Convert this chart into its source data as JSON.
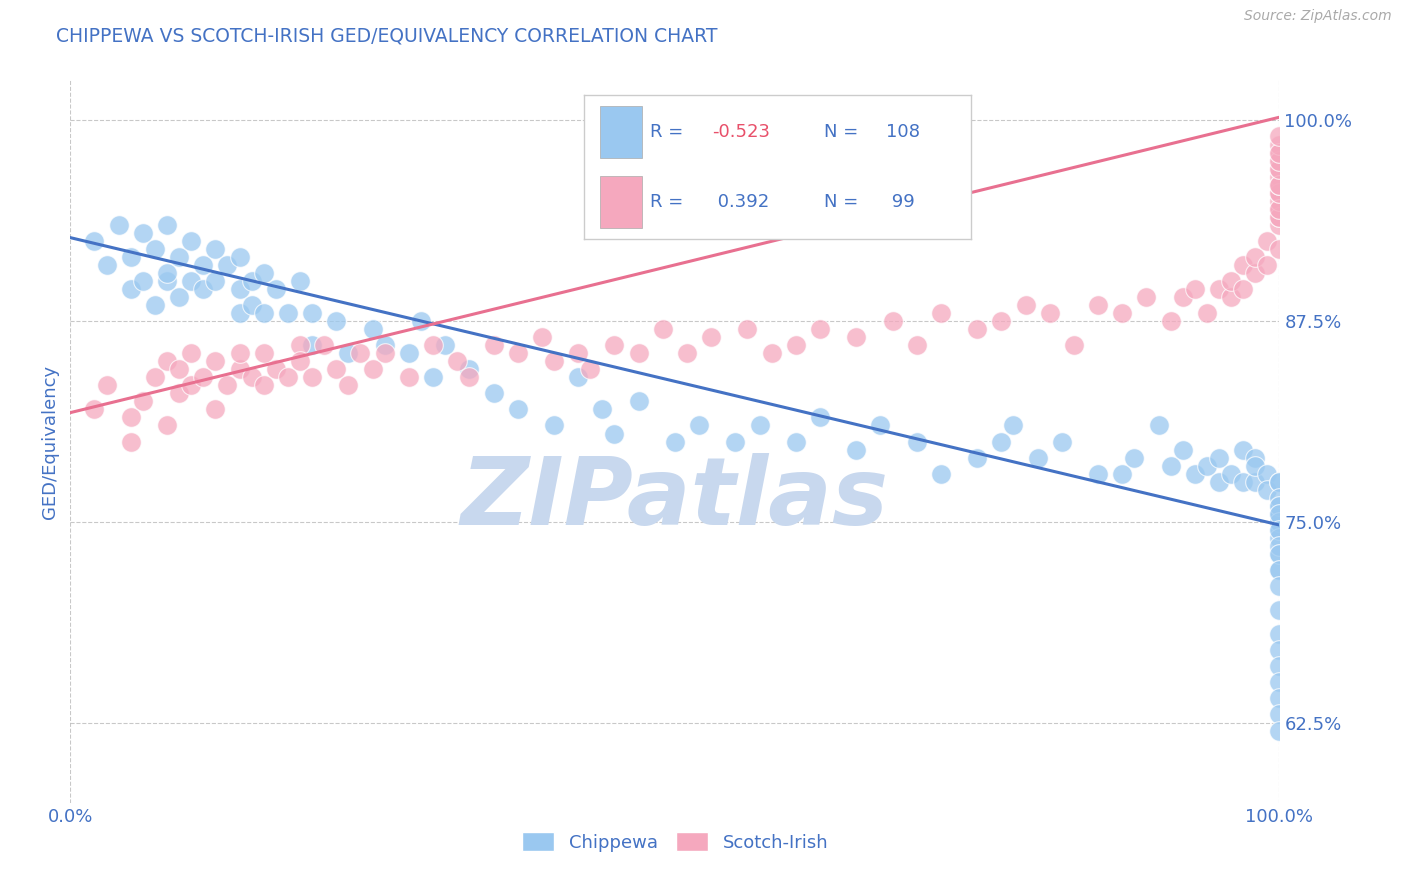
{
  "title": "CHIPPEWA VS SCOTCH-IRISH GED/EQUIVALENCY CORRELATION CHART",
  "source_text": "Source: ZipAtlas.com",
  "ylabel": "GED/Equivalency",
  "xlim": [
    0.0,
    1.0
  ],
  "ylim": [
    0.575,
    1.025
  ],
  "yticks": [
    0.625,
    0.75,
    0.875,
    1.0
  ],
  "ytick_labels": [
    "62.5%",
    "75.0%",
    "87.5%",
    "100.0%"
  ],
  "xticks": [
    0.0,
    1.0
  ],
  "xtick_labels": [
    "0.0%",
    "100.0%"
  ],
  "chippewa_color": "#9AC8F0",
  "scotch_irish_color": "#F5A8BE",
  "chippewa_line_color": "#4472C4",
  "scotch_irish_line_color": "#E87090",
  "grid_color": "#BBBBBB",
  "title_color": "#4472C4",
  "tick_label_color": "#4472C4",
  "legend_r1": "-0.523",
  "legend_n1": "108",
  "legend_r2": "0.392",
  "legend_n2": "99",
  "watermark_text": "ZIPatlas",
  "watermark_color": "#C8D8EE",
  "background_color": "#FFFFFF",
  "chip_line_x0": 0.0,
  "chip_line_y0": 0.927,
  "chip_line_x1": 1.0,
  "chip_line_y1": 0.748,
  "si_line_x0": 0.0,
  "si_line_y0": 0.818,
  "si_line_x1": 1.0,
  "si_line_y1": 1.002,
  "chippewa_x": [
    0.02,
    0.03,
    0.04,
    0.05,
    0.05,
    0.06,
    0.06,
    0.07,
    0.07,
    0.08,
    0.08,
    0.08,
    0.09,
    0.09,
    0.1,
    0.1,
    0.11,
    0.11,
    0.12,
    0.12,
    0.13,
    0.14,
    0.14,
    0.14,
    0.15,
    0.15,
    0.16,
    0.16,
    0.17,
    0.18,
    0.19,
    0.2,
    0.2,
    0.22,
    0.23,
    0.25,
    0.26,
    0.28,
    0.29,
    0.3,
    0.31,
    0.33,
    0.35,
    0.37,
    0.4,
    0.42,
    0.44,
    0.45,
    0.47,
    0.5,
    0.52,
    0.55,
    0.57,
    0.6,
    0.62,
    0.65,
    0.67,
    0.7,
    0.72,
    0.75,
    0.77,
    0.78,
    0.8,
    0.82,
    0.85,
    0.87,
    0.88,
    0.9,
    0.91,
    0.92,
    0.93,
    0.94,
    0.95,
    0.95,
    0.96,
    0.97,
    0.97,
    0.98,
    0.98,
    0.98,
    0.99,
    0.99,
    1.0,
    1.0,
    1.0,
    1.0,
    1.0,
    1.0,
    1.0,
    1.0,
    1.0,
    1.0,
    1.0,
    1.0,
    1.0,
    1.0,
    1.0,
    1.0,
    1.0,
    1.0,
    1.0,
    1.0,
    1.0,
    1.0,
    1.0,
    1.0,
    1.0,
    1.0
  ],
  "chippewa_y": [
    0.925,
    0.91,
    0.935,
    0.895,
    0.915,
    0.9,
    0.93,
    0.885,
    0.92,
    0.9,
    0.935,
    0.905,
    0.915,
    0.89,
    0.9,
    0.925,
    0.895,
    0.91,
    0.9,
    0.92,
    0.91,
    0.895,
    0.915,
    0.88,
    0.9,
    0.885,
    0.905,
    0.88,
    0.895,
    0.88,
    0.9,
    0.88,
    0.86,
    0.875,
    0.855,
    0.87,
    0.86,
    0.855,
    0.875,
    0.84,
    0.86,
    0.845,
    0.83,
    0.82,
    0.81,
    0.84,
    0.82,
    0.805,
    0.825,
    0.8,
    0.81,
    0.8,
    0.81,
    0.8,
    0.815,
    0.795,
    0.81,
    0.8,
    0.78,
    0.79,
    0.8,
    0.81,
    0.79,
    0.8,
    0.78,
    0.78,
    0.79,
    0.81,
    0.785,
    0.795,
    0.78,
    0.785,
    0.775,
    0.79,
    0.78,
    0.795,
    0.775,
    0.79,
    0.775,
    0.785,
    0.78,
    0.77,
    0.775,
    0.755,
    0.76,
    0.775,
    0.755,
    0.765,
    0.745,
    0.76,
    0.75,
    0.74,
    0.755,
    0.73,
    0.745,
    0.735,
    0.72,
    0.73,
    0.72,
    0.71,
    0.695,
    0.68,
    0.67,
    0.66,
    0.65,
    0.64,
    0.63,
    0.62
  ],
  "scotch_y": [
    0.82,
    0.835,
    0.8,
    0.815,
    0.825,
    0.84,
    0.81,
    0.85,
    0.83,
    0.845,
    0.855,
    0.835,
    0.84,
    0.82,
    0.85,
    0.835,
    0.845,
    0.855,
    0.84,
    0.835,
    0.855,
    0.845,
    0.84,
    0.86,
    0.85,
    0.84,
    0.86,
    0.845,
    0.835,
    0.855,
    0.845,
    0.855,
    0.84,
    0.86,
    0.85,
    0.84,
    0.86,
    0.855,
    0.865,
    0.85,
    0.855,
    0.845,
    0.86,
    0.855,
    0.87,
    0.855,
    0.865,
    0.87,
    0.855,
    0.86,
    0.87,
    0.865,
    0.875,
    0.86,
    0.88,
    0.87,
    0.875,
    0.885,
    0.88,
    0.86,
    0.885,
    0.88,
    0.89,
    0.875,
    0.89,
    0.895,
    0.88,
    0.895,
    0.89,
    0.9,
    0.91,
    0.895,
    0.905,
    0.915,
    0.91,
    0.925,
    0.92,
    0.935,
    0.94,
    0.945,
    0.955,
    0.945,
    0.94,
    0.95,
    0.96,
    0.955,
    0.945,
    0.965,
    0.955,
    0.96,
    0.97,
    0.96,
    0.975,
    0.97,
    0.98,
    0.975,
    0.985,
    0.98,
    0.99
  ],
  "scotch_x": [
    0.02,
    0.03,
    0.05,
    0.05,
    0.06,
    0.07,
    0.08,
    0.08,
    0.09,
    0.09,
    0.1,
    0.1,
    0.11,
    0.12,
    0.12,
    0.13,
    0.14,
    0.14,
    0.15,
    0.16,
    0.16,
    0.17,
    0.18,
    0.19,
    0.19,
    0.2,
    0.21,
    0.22,
    0.23,
    0.24,
    0.25,
    0.26,
    0.28,
    0.3,
    0.32,
    0.33,
    0.35,
    0.37,
    0.39,
    0.4,
    0.42,
    0.43,
    0.45,
    0.47,
    0.49,
    0.51,
    0.53,
    0.56,
    0.58,
    0.6,
    0.62,
    0.65,
    0.68,
    0.7,
    0.72,
    0.75,
    0.77,
    0.79,
    0.81,
    0.83,
    0.85,
    0.87,
    0.89,
    0.91,
    0.92,
    0.93,
    0.94,
    0.95,
    0.96,
    0.96,
    0.97,
    0.97,
    0.98,
    0.98,
    0.99,
    0.99,
    1.0,
    1.0,
    1.0,
    1.0,
    1.0,
    1.0,
    1.0,
    1.0,
    1.0,
    1.0,
    1.0,
    1.0,
    1.0,
    1.0,
    1.0,
    1.0,
    1.0,
    1.0,
    1.0,
    1.0,
    1.0,
    1.0,
    1.0
  ]
}
